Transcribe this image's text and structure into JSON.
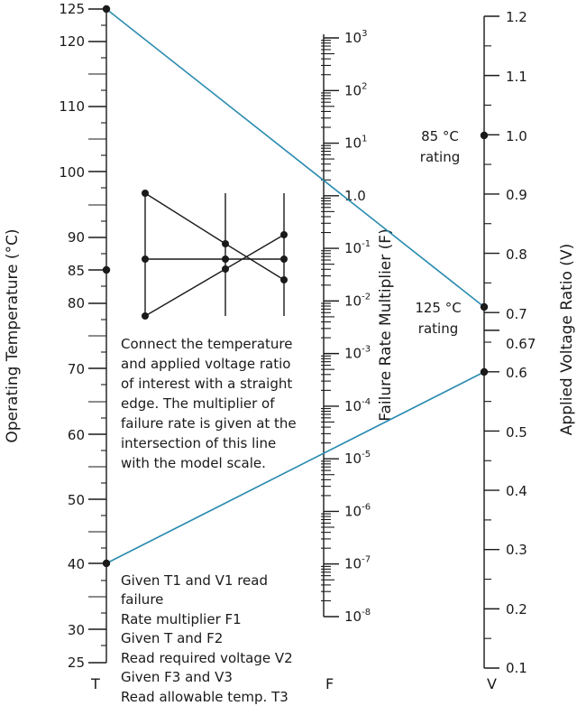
{
  "axes": {
    "T": {
      "title": "Operating Temperature (°C)",
      "letter": "T",
      "labels": [
        "125",
        "120",
        "110",
        "100",
        "90",
        "85",
        "80",
        "70",
        "60",
        "50",
        "40",
        "30",
        "25"
      ]
    },
    "F": {
      "title": "Failure Rate Multiplier (F)",
      "letter": "F",
      "labels": [
        {
          "base": "10",
          "exp": "3"
        },
        {
          "base": "10",
          "exp": "2"
        },
        {
          "base": "10",
          "exp": "1"
        },
        {
          "base": "1.0",
          "exp": ""
        },
        {
          "base": "10",
          "exp": "-1"
        },
        {
          "base": "10",
          "exp": "-2"
        },
        {
          "base": "10",
          "exp": "-3"
        },
        {
          "base": "10",
          "exp": "-4"
        },
        {
          "base": "10",
          "exp": "-5"
        },
        {
          "base": "10",
          "exp": "-6"
        },
        {
          "base": "10",
          "exp": "-7"
        },
        {
          "base": "10",
          "exp": "-8"
        }
      ]
    },
    "V": {
      "title": "Applied Voltage Ratio (V)",
      "letter": "V",
      "labels": [
        "1.2",
        "1.1",
        "1.0",
        "0.9",
        "0.8",
        "0.7",
        "0.67",
        "0.6",
        "0.5",
        "0.4",
        "0.3",
        "0.2",
        "0.1"
      ]
    }
  },
  "annotations": {
    "rating_85": [
      "85 °C",
      "rating"
    ],
    "rating_125": [
      "125 °C",
      "rating"
    ]
  },
  "instructions": [
    "Connect the temperature",
    "and applied voltage ratio",
    "of interest with a straight",
    "edge. The multiplier of",
    "failure rate is given at the",
    "intersection of this line",
    "with the model scale."
  ],
  "steps": [
    "Given T1 and V1 read",
    "failure",
    "Rate multiplier F1",
    "Given T and F2",
    "Read required voltage V2",
    "Given F3 and V3",
    "Read allowable temp. T3"
  ],
  "colors": {
    "line": "#2a8bb0",
    "ink": "#1a1a1a"
  }
}
